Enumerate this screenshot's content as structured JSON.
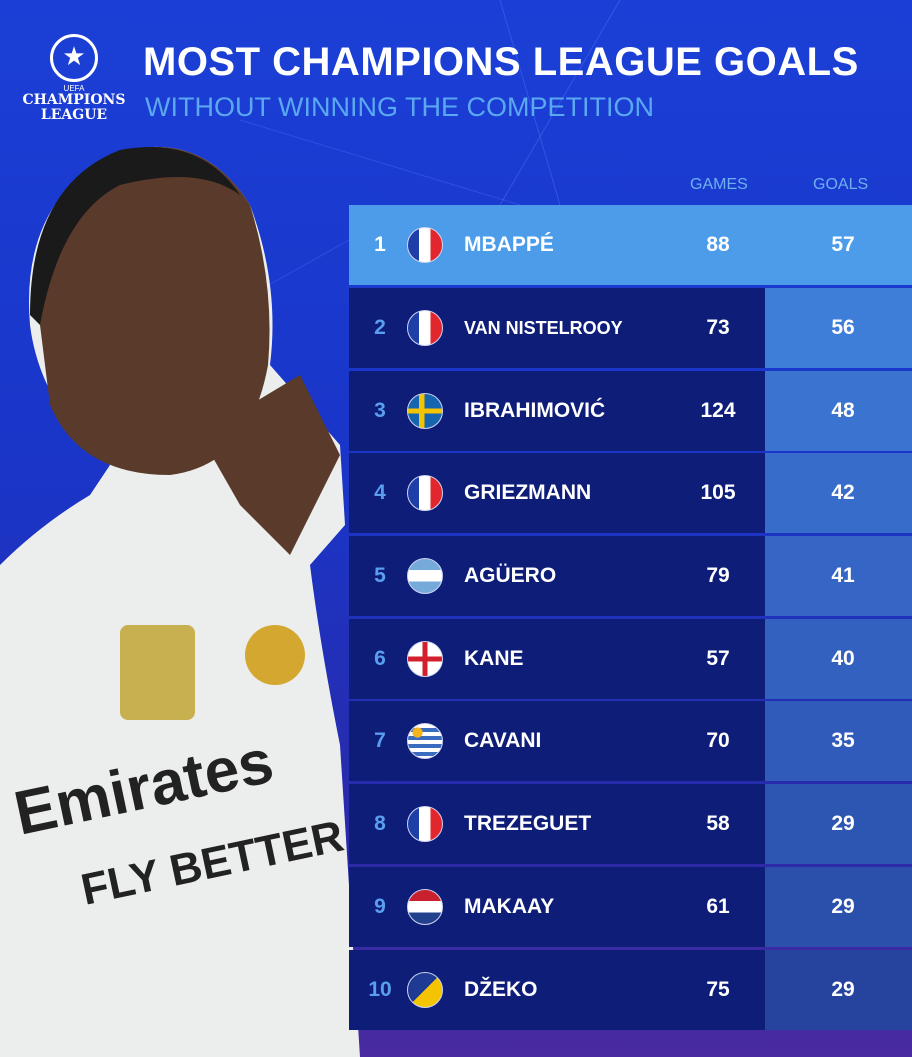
{
  "logo": {
    "uefa": "UEFA",
    "line1": "CHAMPIONS",
    "line2": "LEAGUE"
  },
  "title": "MOST CHAMPIONS LEAGUE GOALS",
  "subtitle": "WITHOUT WINNING THE COMPETITION",
  "columns": {
    "games": "GAMES",
    "goals": "GOALS"
  },
  "colors": {
    "background": "#1b3fd6",
    "row": "#0e1d78",
    "highlight": "#4c9cea",
    "subtitle": "#5aa8f0"
  },
  "rows": [
    {
      "rank": "1",
      "flag": "france",
      "name": "MBAPPÉ",
      "games": "88",
      "goals": "57"
    },
    {
      "rank": "2",
      "flag": "france",
      "name": "VAN NISTELROOY",
      "games": "73",
      "goals": "56"
    },
    {
      "rank": "3",
      "flag": "sweden",
      "name": "IBRAHIMOVIĆ",
      "games": "124",
      "goals": "48"
    },
    {
      "rank": "4",
      "flag": "france",
      "name": "GRIEZMANN",
      "games": "105",
      "goals": "42"
    },
    {
      "rank": "5",
      "flag": "argentina",
      "name": "AGÜERO",
      "games": "79",
      "goals": "41"
    },
    {
      "rank": "6",
      "flag": "england",
      "name": "KANE",
      "games": "57",
      "goals": "40"
    },
    {
      "rank": "7",
      "flag": "uruguay",
      "name": "CAVANI",
      "games": "70",
      "goals": "35"
    },
    {
      "rank": "8",
      "flag": "france",
      "name": "TREZEGUET",
      "games": "58",
      "goals": "29"
    },
    {
      "rank": "9",
      "flag": "netherlands",
      "name": "MAKAAY",
      "games": "61",
      "goals": "29"
    },
    {
      "rank": "10",
      "flag": "bosnia",
      "name": "DŽEKO",
      "games": "75",
      "goals": "29"
    }
  ]
}
